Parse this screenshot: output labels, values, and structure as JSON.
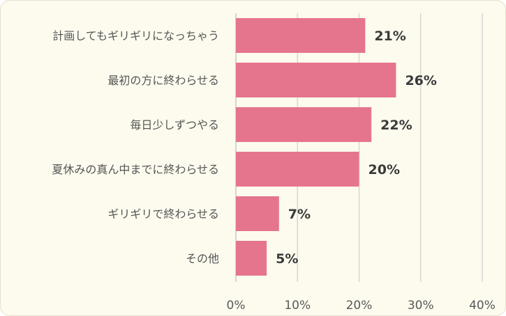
{
  "chart_data": {
    "type": "bar",
    "orientation": "horizontal",
    "categories": [
      "計画してもギリギリになっちゃう",
      "最初の方に終わらせる",
      "毎日少しずつやる",
      "夏休みの真ん中までに終わらせる",
      "ギリギリで終わらせる",
      "その他"
    ],
    "values": [
      21,
      26,
      22,
      20,
      7,
      5
    ],
    "value_labels": [
      "21%",
      "26%",
      "22%",
      "20%",
      "7%",
      "5%"
    ],
    "xlim": [
      0,
      40
    ],
    "xticks": [
      0,
      10,
      20,
      30,
      40
    ],
    "xtick_labels": [
      "0%",
      "10%",
      "20%",
      "30%",
      "40%"
    ],
    "grid": "vertical",
    "bar_color": "#e5758d",
    "background": "#fdfbee"
  }
}
